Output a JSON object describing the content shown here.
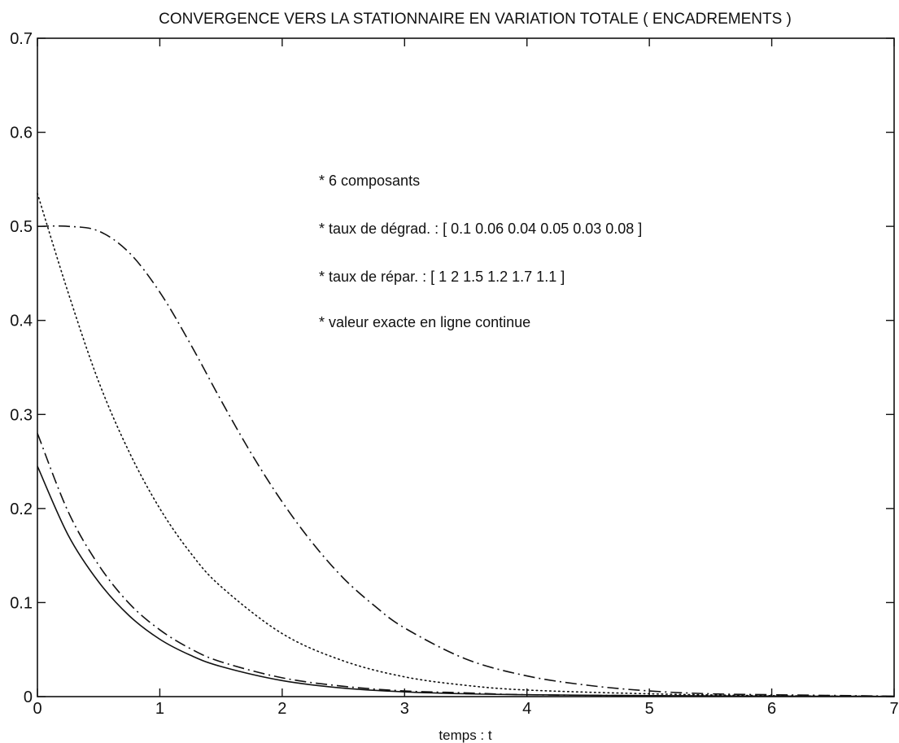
{
  "chart_data": {
    "type": "line",
    "title": "CONVERGENCE VERS LA STATIONNAIRE EN VARIATION TOTALE ( ENCADREMENTS )",
    "xlabel": "temps : t",
    "ylabel": "",
    "xlim": [
      0,
      7
    ],
    "ylim": [
      0,
      0.7
    ],
    "x_ticks": [
      0,
      1,
      2,
      3,
      4,
      5,
      6,
      7
    ],
    "x_tick_labels": [
      "0",
      "1",
      "2",
      "3",
      "4",
      "5",
      "6",
      "7"
    ],
    "y_ticks": [
      0,
      0.1,
      0.2,
      0.3,
      0.4,
      0.5,
      0.6,
      0.7
    ],
    "y_tick_labels": [
      "0",
      "0.1",
      "0.2",
      "0.3",
      "0.4",
      "0.5",
      "0.6",
      "0.7"
    ],
    "grid": false,
    "annotations": [
      "* 6 composants",
      "* taux de dégrad. : [ 0.1 0.06 0.04 0.05 0.03 0.08 ]",
      "* taux de répar. : [ 1  2  1.5  1.2  1.7  1.1 ]",
      "* valeur exacte en ligne continue"
    ],
    "series": [
      {
        "style": "solid",
        "color": "#111111",
        "x": [
          0,
          0.25,
          0.5,
          0.75,
          1,
          1.25,
          1.5,
          2,
          2.5,
          3,
          3.5,
          4,
          5,
          6,
          7
        ],
        "y": [
          0.245,
          0.172,
          0.122,
          0.086,
          0.061,
          0.044,
          0.032,
          0.017,
          0.009,
          0.005,
          0.003,
          0.002,
          0.001,
          0.0005,
          0.0002
        ]
      },
      {
        "style": "dashdot",
        "color": "#111111",
        "x": [
          0,
          0.25,
          0.5,
          0.75,
          1,
          1.25,
          1.5,
          2,
          2.5,
          3,
          3.5,
          4,
          5,
          6,
          7
        ],
        "y": [
          0.28,
          0.197,
          0.14,
          0.099,
          0.071,
          0.051,
          0.037,
          0.02,
          0.011,
          0.006,
          0.004,
          0.002,
          0.001,
          0.0005,
          0.0002
        ]
      },
      {
        "style": "dotted",
        "color": "#111111",
        "x": [
          0,
          0.25,
          0.5,
          0.75,
          1,
          1.25,
          1.5,
          2,
          2.5,
          3,
          3.5,
          4,
          5,
          6,
          7
        ],
        "y": [
          0.535,
          0.43,
          0.335,
          0.26,
          0.2,
          0.153,
          0.117,
          0.067,
          0.038,
          0.021,
          0.012,
          0.007,
          0.003,
          0.001,
          0.0003
        ]
      },
      {
        "style": "dashdot",
        "color": "#111111",
        "x": [
          0,
          0.25,
          0.5,
          0.75,
          1,
          1.25,
          1.5,
          1.75,
          2,
          2.25,
          2.5,
          2.75,
          3,
          3.5,
          4,
          4.5,
          5,
          5.5,
          6,
          7
        ],
        "y": [
          0.5,
          0.5,
          0.495,
          0.472,
          0.43,
          0.375,
          0.315,
          0.258,
          0.207,
          0.163,
          0.126,
          0.097,
          0.073,
          0.04,
          0.022,
          0.012,
          0.006,
          0.003,
          0.002,
          0.0005
        ]
      }
    ]
  }
}
